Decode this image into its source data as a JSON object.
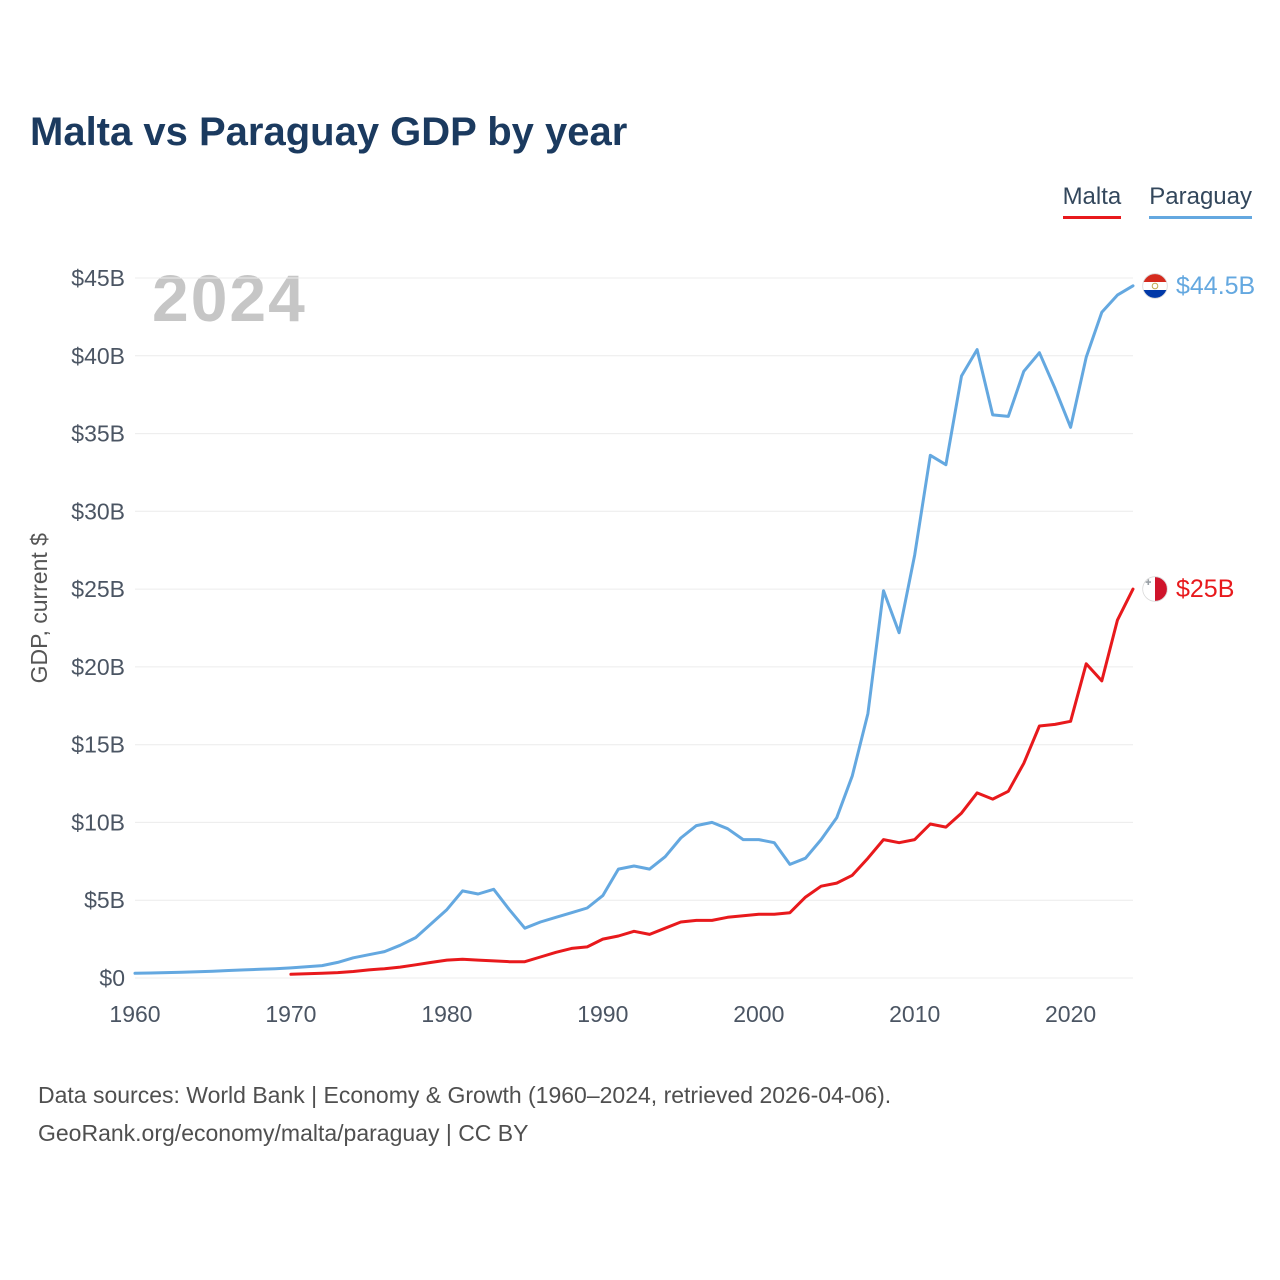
{
  "title": "Malta vs Paraguay GDP by year",
  "watermark": "2024",
  "legend": {
    "malta_label": "Malta",
    "paraguay_label": "Paraguay",
    "malta_color": "#e8191c",
    "paraguay_color": "#64a8e0"
  },
  "end_labels": {
    "paraguay": {
      "text": "$44.5B",
      "flag": "paraguay-flag",
      "color": "#64a8e0"
    },
    "malta": {
      "text": "$25B",
      "flag": "malta-flag",
      "color": "#e8191c"
    }
  },
  "footer": {
    "line1": "Data sources: World Bank | Economy & Growth (1960–2024, retrieved 2026-04-06).",
    "line2": "GeoRank.org/economy/malta/paraguay | CC BY"
  },
  "chart_data": {
    "type": "line",
    "title": "Malta vs Paraguay GDP by year",
    "xlabel": "",
    "ylabel": "GDP, current $",
    "ylim": [
      0,
      45
    ],
    "xlim": [
      1960,
      2024
    ],
    "grid": "horizontal",
    "legend_position": "top-right",
    "y_ticks": [
      "$0",
      "$5B",
      "$10B",
      "$15B",
      "$20B",
      "$25B",
      "$30B",
      "$35B",
      "$40B",
      "$45B"
    ],
    "y_tick_values": [
      0,
      5,
      10,
      15,
      20,
      25,
      30,
      35,
      40,
      45
    ],
    "x_ticks": [
      1960,
      1970,
      1980,
      1990,
      2000,
      2010,
      2020
    ],
    "series": [
      {
        "name": "Paraguay",
        "color": "#64a8e0",
        "start_year": 1960,
        "end_year": 2024,
        "end_value_label": "$44.5B",
        "values": [
          0.3,
          0.32,
          0.35,
          0.37,
          0.4,
          0.44,
          0.48,
          0.52,
          0.56,
          0.6,
          0.65,
          0.72,
          0.8,
          1.0,
          1.3,
          1.5,
          1.7,
          2.1,
          2.6,
          3.5,
          4.4,
          5.6,
          5.4,
          5.7,
          4.4,
          3.2,
          3.6,
          3.9,
          4.2,
          4.5,
          5.3,
          7.0,
          7.2,
          7.0,
          7.8,
          9.0,
          9.8,
          10.0,
          9.6,
          8.9,
          8.9,
          8.7,
          7.3,
          7.7,
          8.9,
          10.3,
          13.0,
          17.0,
          24.9,
          22.2,
          27.2,
          33.6,
          33.0,
          38.7,
          40.4,
          36.2,
          36.1,
          39.0,
          40.2,
          37.9,
          35.4,
          39.9,
          42.8,
          43.9,
          44.5
        ]
      },
      {
        "name": "Malta",
        "color": "#e8191c",
        "start_year": 1970,
        "end_year": 2024,
        "end_value_label": "$25B",
        "values": [
          0.24,
          0.27,
          0.3,
          0.35,
          0.42,
          0.52,
          0.6,
          0.7,
          0.85,
          1.0,
          1.15,
          1.2,
          1.15,
          1.1,
          1.05,
          1.05,
          1.35,
          1.65,
          1.9,
          2.0,
          2.5,
          2.7,
          3.0,
          2.8,
          3.2,
          3.6,
          3.7,
          3.7,
          3.9,
          4.0,
          4.1,
          4.1,
          4.2,
          5.2,
          5.9,
          6.1,
          6.6,
          7.7,
          8.9,
          8.7,
          8.9,
          9.9,
          9.7,
          10.6,
          11.9,
          11.5,
          12.0,
          13.8,
          16.2,
          16.3,
          16.5,
          20.2,
          19.1,
          23.0,
          25.0
        ]
      }
    ]
  }
}
